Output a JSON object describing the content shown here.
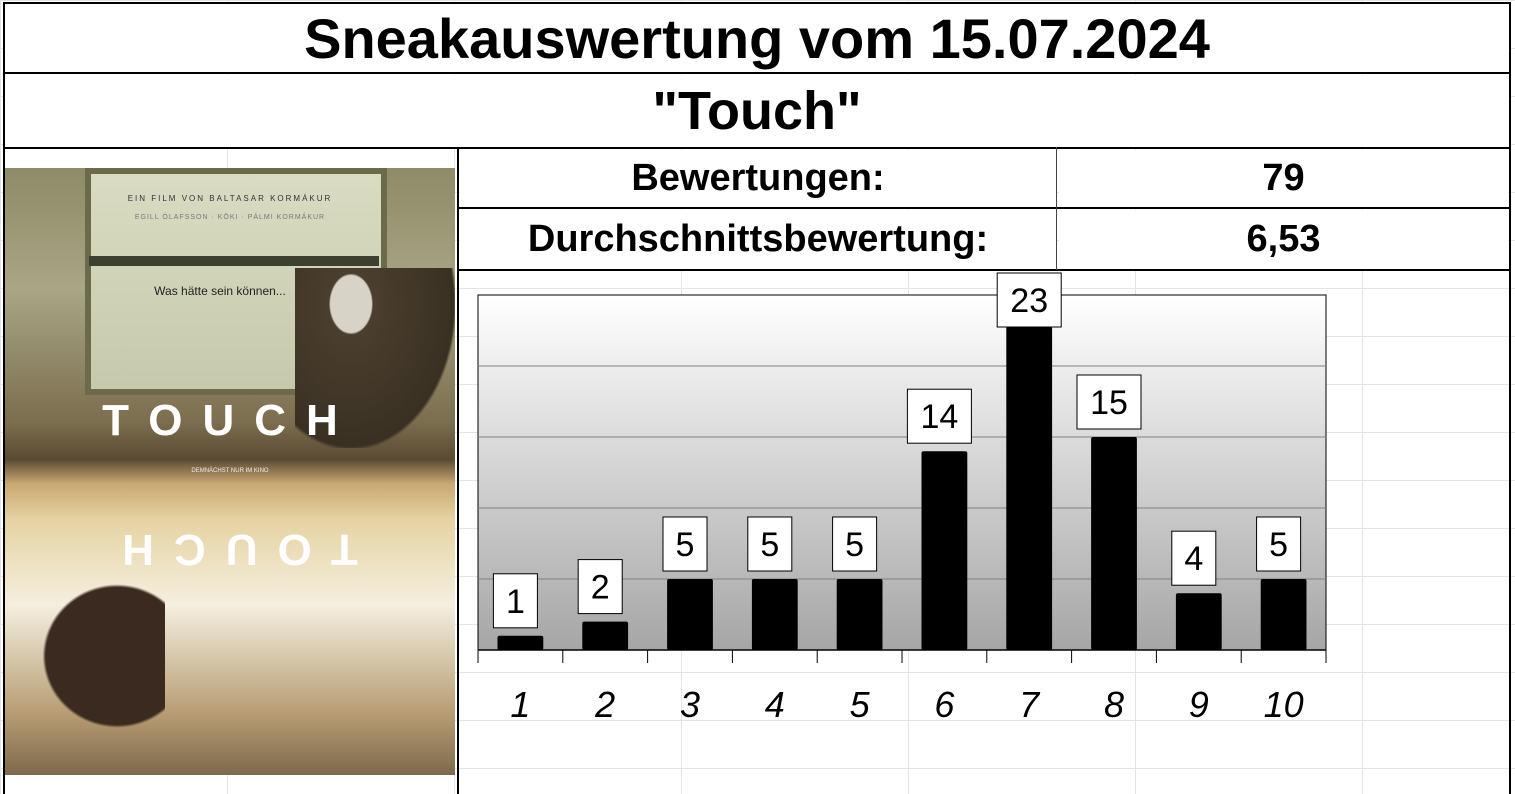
{
  "title": "Sneakauswertung vom 15.07.2024",
  "subtitle": "\"Touch\"",
  "stats": {
    "count_label": "Bewertungen:",
    "count_value": "79",
    "avg_label": "Durchschnittsbewertung:",
    "avg_value": "6,53"
  },
  "poster": {
    "director_line": "EIN FILM VON BALTASAR KORMÁKUR",
    "cast_line": "EGILL ÓLAFSSON · KŌKI · PÁLMI KORMÁKUR",
    "tagline": "Was hätte sein können...",
    "film_title": "TOUCH",
    "release_line": "DEMNÄCHST NUR IM KINO"
  },
  "colors": {
    "bar": "#000000",
    "plot_top": "#ffffff",
    "plot_bottom": "#a6a6a6",
    "gridline": "#808080"
  },
  "chart_data": {
    "type": "bar",
    "categories": [
      "1",
      "2",
      "3",
      "4",
      "5",
      "6",
      "7",
      "8",
      "9",
      "10"
    ],
    "values": [
      1,
      2,
      5,
      5,
      5,
      14,
      23,
      15,
      4,
      5
    ],
    "data_labels": [
      "1",
      "2",
      "5",
      "5",
      "5",
      "14",
      "23",
      "15",
      "4",
      "5"
    ],
    "ylim": [
      0,
      25
    ],
    "y_gridlines": [
      5,
      10,
      15,
      20,
      25
    ],
    "y_tick_labels_shown": false,
    "grid": true,
    "legend": "none",
    "xlabel": "",
    "ylabel": "",
    "title": ""
  }
}
